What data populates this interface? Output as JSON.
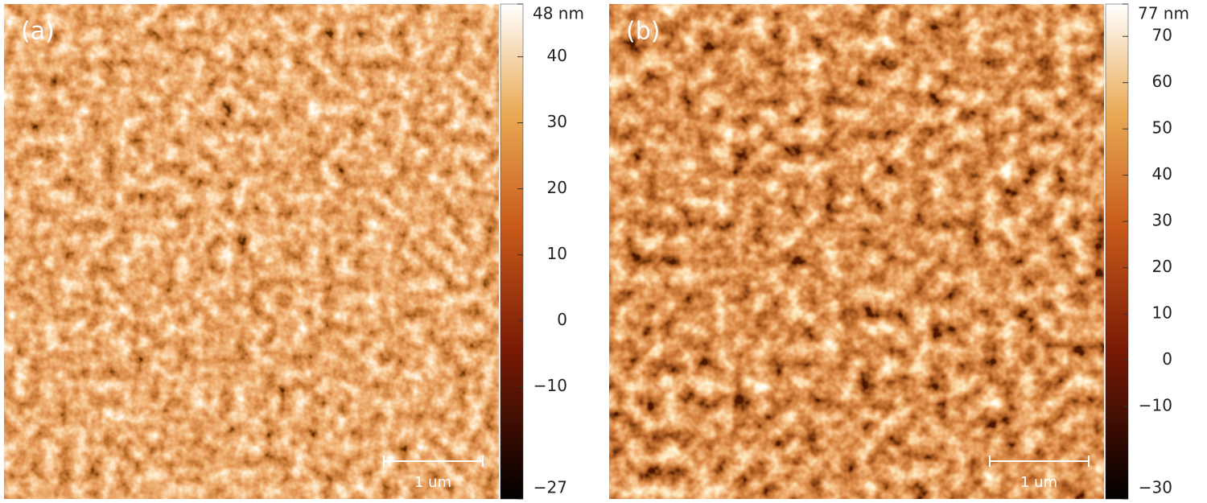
{
  "panels": [
    {
      "label": "(a)",
      "scale_bar": "1 um",
      "colorbar": {
        "lim": [
          -27,
          48
        ],
        "ticks": [
          {
            "value": 48,
            "label": "48 nm"
          },
          40,
          30,
          20,
          10,
          0,
          {
            "value": -10,
            "label": "−10"
          },
          {
            "value": -27,
            "label": "−27"
          }
        ]
      }
    },
    {
      "label": "(b)",
      "scale_bar": "1 um",
      "colorbar": {
        "lim": [
          -30,
          77
        ],
        "ticks": [
          {
            "value": 77,
            "label": "77 nm"
          },
          70,
          60,
          50,
          40,
          30,
          20,
          10,
          0,
          {
            "value": -10,
            "label": "−10"
          },
          {
            "value": -30,
            "label": "−30"
          }
        ]
      }
    }
  ]
}
